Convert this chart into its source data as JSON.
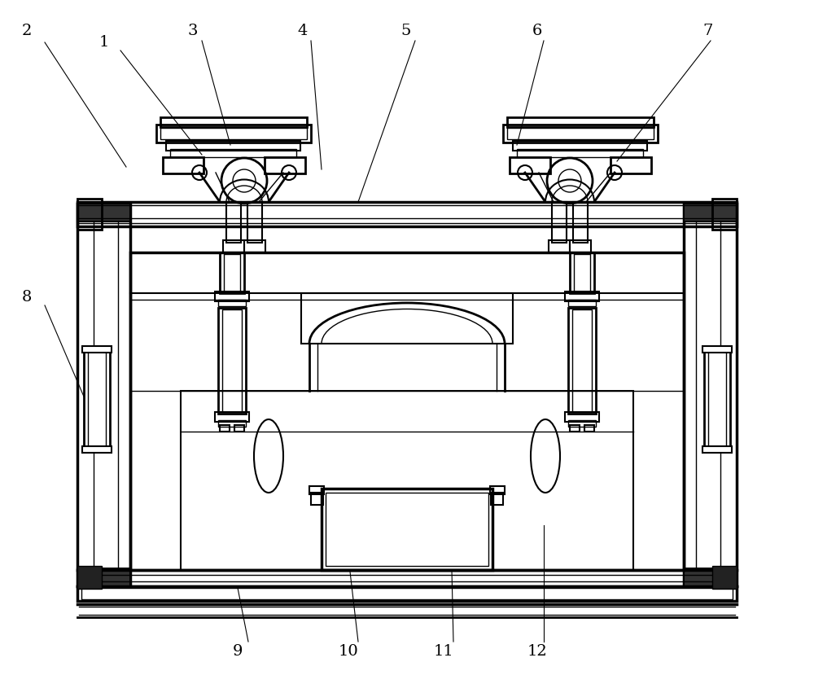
{
  "bg_color": "#ffffff",
  "line_color": "#000000",
  "fig_width": 10.0,
  "fig_height": 8.4,
  "label_fontsize": 14
}
